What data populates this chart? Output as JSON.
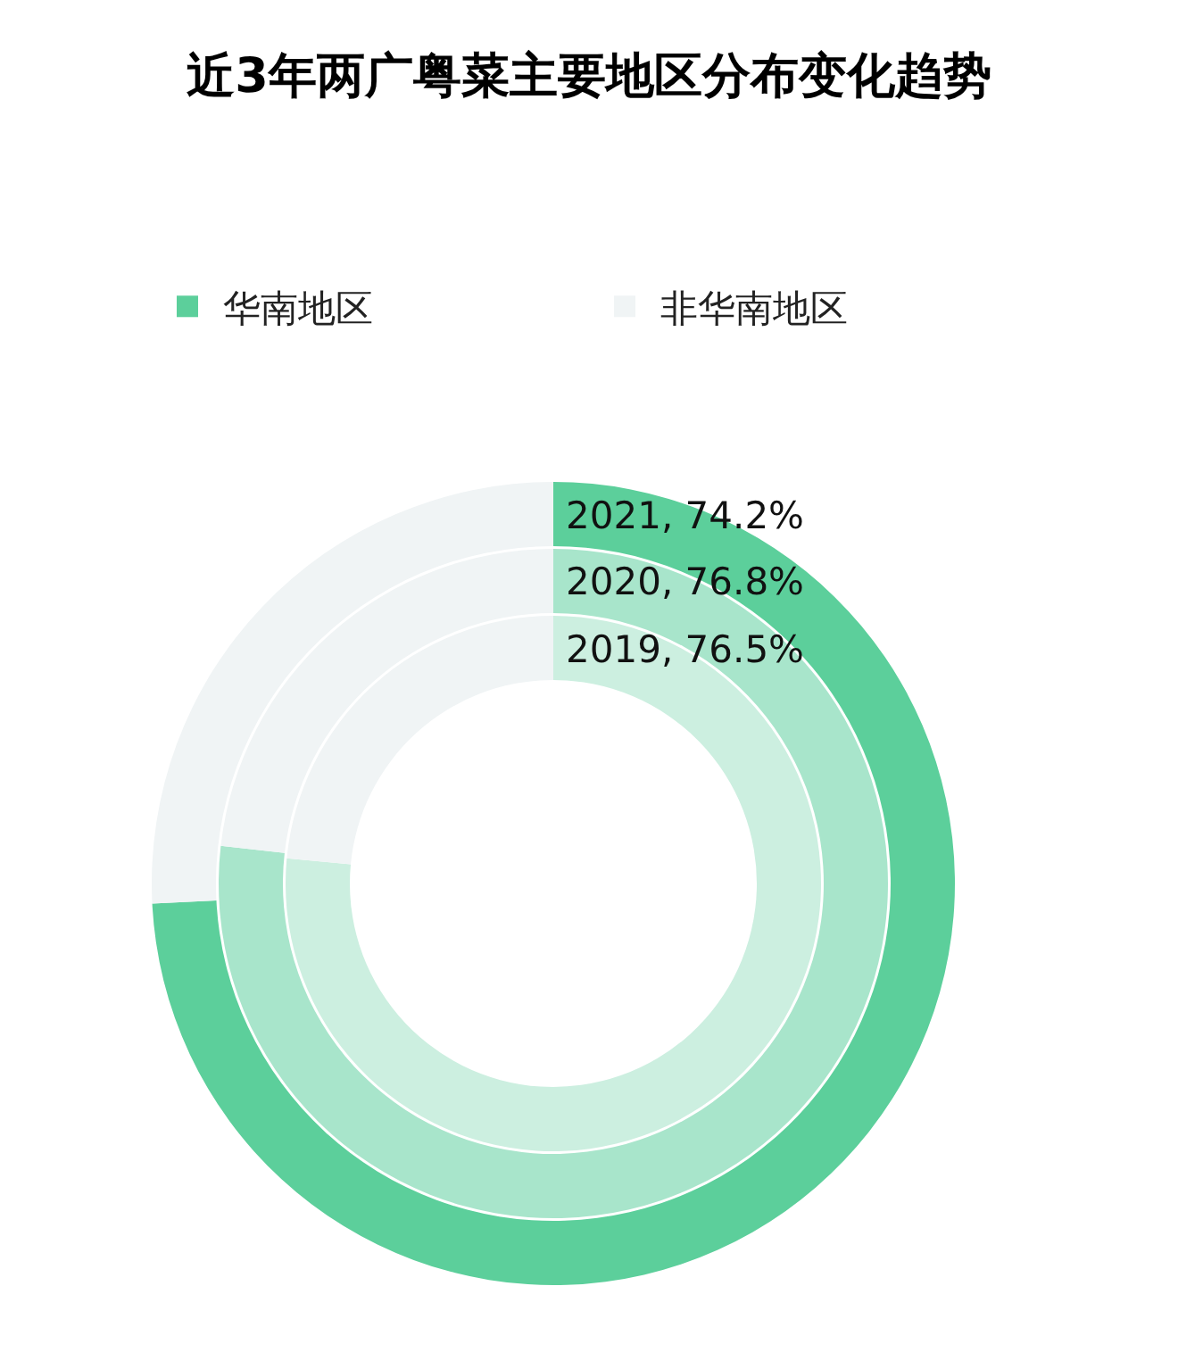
{
  "chart_data": [
    {
      "type": "donut",
      "title": "近3年两广粤菜主要地区分布变化趋势",
      "categories": [
        "华南地区",
        "非华南地区"
      ],
      "legend": "top",
      "values": [
        74.2,
        25.8
      ],
      "colors": [
        "#5ccf9b",
        "#f0f4f5"
      ],
      "value_labels": [
        "2021, 74.2%",
        null
      ]
    },
    {
      "type": "donut",
      "values": [
        76.8,
        23.2
      ],
      "colors": [
        "#a8e5cb",
        "#f0f4f5"
      ],
      "value_labels": [
        "2020, 76.8%",
        null
      ]
    },
    {
      "type": "donut",
      "values": [
        76.5,
        23.5
      ],
      "colors": [
        "#ccefe0",
        "#f0f4f5"
      ],
      "value_labels": [
        "2019, 76.5%",
        null
      ]
    }
  ]
}
